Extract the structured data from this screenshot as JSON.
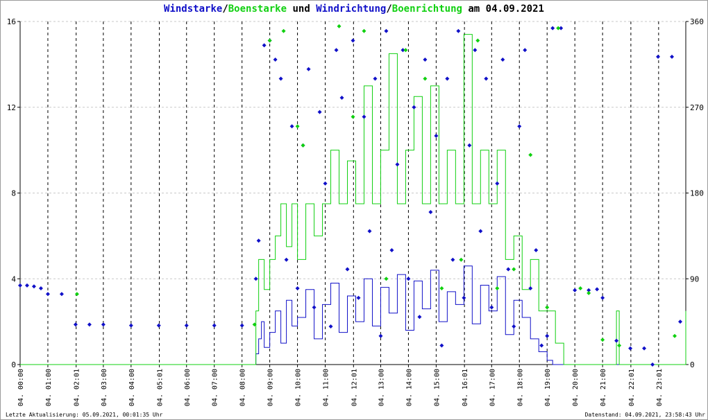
{
  "title": {
    "part1": "Windstarke",
    "sep1": "/",
    "part2": "Boenstarke",
    "part3": " und ",
    "part4": "Windrichtung",
    "sep2": "/",
    "part5": "Boenrichtung",
    "part6": " am 04.09.2021"
  },
  "footer": {
    "left": "Letzte Aktualisierung: 05.09.2021, 00:01:35 Uhr",
    "right": "Datenstand: 04.09.2021, 23:58:43 Uhr"
  },
  "colors": {
    "wind": "#1010c8",
    "gust": "#10d010",
    "grid": "#c8c8c8",
    "axis": "#000000"
  },
  "chart_data": {
    "type": "line",
    "x_tick_labels": [
      "04. 00:00",
      "04. 01:00",
      "04. 02:01",
      "04. 03:00",
      "04. 04:00",
      "04. 05:01",
      "04. 06:00",
      "04. 07:00",
      "04. 08:00",
      "04. 09:00",
      "04. 10:00",
      "04. 11:00",
      "04. 12:01",
      "04. 13:00",
      "04. 14:00",
      "04. 15:00",
      "04. 16:01",
      "04. 17:00",
      "04. 18:00",
      "04. 19:00",
      "04. 20:00",
      "04. 21:00",
      "04. 22:01",
      "04. 23:01"
    ],
    "x_tick_hours": [
      0,
      1,
      2.02,
      3,
      4,
      5.02,
      6,
      7,
      8,
      9,
      10,
      11,
      12.02,
      13,
      14,
      15,
      16.02,
      17,
      18,
      19,
      20,
      21,
      22.02,
      23.02
    ],
    "xlim": [
      0,
      24
    ],
    "y_left": {
      "ylim": [
        0,
        16
      ],
      "ticks": [
        0,
        4,
        8,
        12,
        16
      ]
    },
    "y_right": {
      "ylim": [
        0,
        360
      ],
      "ticks": [
        0,
        90,
        180,
        270,
        360
      ]
    },
    "grid": true,
    "series": [
      {
        "name": "Windstarke",
        "axis": "left",
        "style": "line",
        "hours": [
          0,
          0.5,
          0.55,
          1.0,
          1.05,
          2.0,
          2.05,
          8.4,
          8.5,
          8.6,
          8.7,
          8.8,
          9.0,
          9.2,
          9.4,
          9.6,
          9.8,
          10.0,
          10.3,
          10.6,
          10.9,
          11.2,
          11.5,
          11.8,
          12.1,
          12.4,
          12.7,
          13.0,
          13.3,
          13.6,
          13.9,
          14.2,
          14.5,
          14.8,
          15.1,
          15.4,
          15.7,
          16.0,
          16.3,
          16.6,
          16.9,
          17.2,
          17.5,
          17.8,
          18.1,
          18.4,
          18.7,
          19.0,
          19.2,
          19.5,
          20.0,
          21.0,
          22.0,
          23.0,
          23.5,
          24.0
        ],
        "values": [
          0,
          0,
          0,
          0,
          0,
          0,
          0,
          0,
          0.5,
          1.2,
          2.0,
          0.8,
          1.5,
          2.5,
          1.0,
          3.0,
          1.8,
          2.2,
          3.5,
          1.2,
          2.8,
          3.8,
          1.5,
          3.2,
          2.0,
          4.0,
          1.8,
          3.6,
          2.4,
          4.2,
          1.6,
          3.9,
          2.6,
          4.4,
          2.0,
          3.4,
          2.8,
          4.6,
          1.9,
          3.7,
          2.5,
          4.1,
          1.4,
          3.0,
          2.2,
          1.2,
          0.6,
          0.2,
          0,
          0,
          0,
          0,
          0,
          0,
          0,
          1.0
        ]
      },
      {
        "name": "Boenstarke",
        "axis": "left",
        "style": "line",
        "hours": [
          0,
          8.4,
          8.5,
          8.6,
          8.8,
          9.0,
          9.2,
          9.4,
          9.6,
          9.8,
          10.0,
          10.3,
          10.6,
          10.9,
          11.2,
          11.5,
          11.8,
          12.1,
          12.4,
          12.7,
          13.0,
          13.3,
          13.6,
          13.9,
          14.2,
          14.5,
          14.8,
          15.1,
          15.4,
          15.7,
          16.0,
          16.3,
          16.6,
          16.9,
          17.2,
          17.5,
          17.8,
          18.1,
          18.4,
          18.7,
          19.0,
          19.3,
          19.6,
          20.0,
          21.0,
          21.5,
          21.6,
          22.0,
          23.0,
          23.5,
          24.0
        ],
        "values": [
          0,
          0,
          2.5,
          4.9,
          3.5,
          4.9,
          6.0,
          7.5,
          5.5,
          7.5,
          4.9,
          7.5,
          6.0,
          7.5,
          10.0,
          7.5,
          9.5,
          7.5,
          13.0,
          7.5,
          10.0,
          14.5,
          7.5,
          10.0,
          12.5,
          7.5,
          13.0,
          7.5,
          10.0,
          7.5,
          15.4,
          7.5,
          10.0,
          7.5,
          10.0,
          4.9,
          6.0,
          3.5,
          4.9,
          2.5,
          2.5,
          1.0,
          0,
          0,
          0,
          2.5,
          0,
          0,
          0,
          0,
          2.5
        ]
      },
      {
        "name": "Windrichtung",
        "axis": "right",
        "style": "points",
        "hours": [
          0.0,
          0.25,
          0.5,
          0.75,
          1.0,
          1.5,
          2.0,
          2.5,
          3.0,
          4.0,
          5.0,
          6.0,
          7.0,
          8.0,
          8.5,
          8.6,
          8.8,
          9.0,
          9.2,
          9.4,
          9.6,
          9.8,
          10.0,
          10.2,
          10.4,
          10.6,
          10.8,
          11.0,
          11.2,
          11.4,
          11.6,
          11.8,
          12.0,
          12.2,
          12.4,
          12.6,
          12.8,
          13.0,
          13.2,
          13.4,
          13.6,
          13.8,
          14.0,
          14.2,
          14.4,
          14.6,
          14.8,
          15.0,
          15.2,
          15.4,
          15.6,
          15.8,
          16.0,
          16.2,
          16.4,
          16.6,
          16.8,
          17.0,
          17.2,
          17.4,
          17.6,
          17.8,
          18.0,
          18.2,
          18.4,
          18.6,
          18.8,
          19.0,
          19.2,
          19.5,
          20.0,
          20.5,
          20.8,
          21.0,
          21.5,
          22.0,
          22.5,
          22.8,
          23.0,
          23.5,
          23.8
        ],
        "values": [
          83,
          83,
          82,
          80,
          74,
          74,
          42,
          42,
          42,
          41,
          41,
          41,
          41,
          41,
          90,
          130,
          335,
          340,
          320,
          300,
          110,
          250,
          80,
          230,
          310,
          60,
          265,
          190,
          40,
          330,
          280,
          100,
          340,
          70,
          260,
          140,
          300,
          30,
          350,
          120,
          210,
          330,
          90,
          270,
          50,
          320,
          160,
          240,
          20,
          300,
          110,
          350,
          70,
          230,
          330,
          140,
          300,
          60,
          190,
          320,
          100,
          40,
          250,
          330,
          80,
          120,
          20,
          30,
          353,
          353,
          78,
          78,
          79,
          70,
          25,
          17,
          17,
          0,
          323,
          323,
          45
        ]
      },
      {
        "name": "Boenrichtung",
        "axis": "right",
        "style": "points",
        "hours": [
          2.05,
          8.45,
          9.0,
          9.5,
          10.0,
          10.2,
          11.5,
          12.0,
          12.4,
          13.2,
          13.9,
          14.6,
          15.2,
          15.9,
          16.5,
          17.2,
          17.8,
          18.4,
          19.0,
          19.4,
          20.2,
          20.5,
          21.0,
          21.6,
          23.6
        ],
        "values": [
          74,
          42,
          340,
          350,
          250,
          230,
          355,
          260,
          350,
          90,
          330,
          300,
          80,
          110,
          340,
          80,
          100,
          220,
          60,
          353,
          80,
          75,
          26,
          20,
          30
        ]
      }
    ]
  }
}
